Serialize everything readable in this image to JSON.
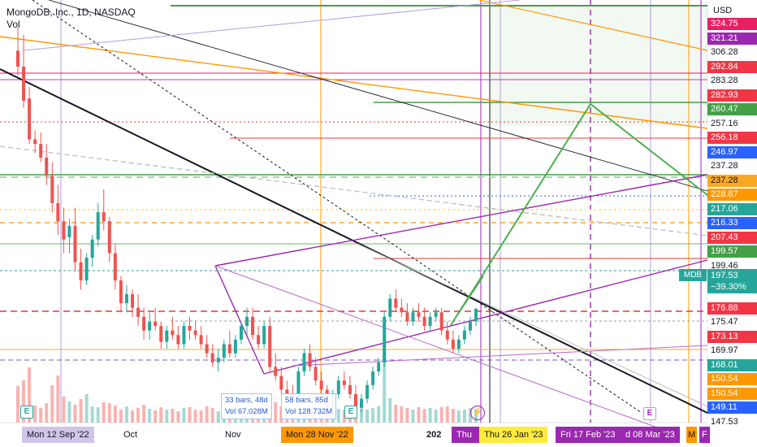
{
  "header": {
    "title": "MongoDB, Inc., 1D, NASDAQ",
    "vol_label": "Vol"
  },
  "currency": "USD",
  "symbol_tag": "MDB",
  "current": {
    "price": "197.53",
    "change": "−39.30%"
  },
  "price_labels": [
    {
      "text": "324.75",
      "bg": "#e91e63"
    },
    {
      "text": "321.21",
      "bg": "#9c27b0"
    },
    {
      "text": "306.28",
      "bg": "#ffffff",
      "fg": "#131722"
    },
    {
      "text": "292.84",
      "bg": "#f23645"
    },
    {
      "text": "283.28",
      "bg": "#ffffff",
      "fg": "#131722"
    },
    {
      "text": "282.93",
      "bg": "#f23645"
    },
    {
      "text": "260.47",
      "bg": "#43a047"
    },
    {
      "text": "257.16",
      "bg": "#ffffff",
      "fg": "#131722"
    },
    {
      "text": "256.18",
      "bg": "#f23645"
    },
    {
      "text": "246.97",
      "bg": "#2962ff"
    },
    {
      "text": "237.28",
      "bg": "#ffffff",
      "fg": "#131722"
    },
    {
      "text": "237.28",
      "bg": "#f9a825",
      "fg": "#131722"
    },
    {
      "text": "228.87",
      "bg": "#ff9800"
    },
    {
      "text": "217.06",
      "bg": "#26a69a"
    },
    {
      "text": "216.33",
      "bg": "#2962ff"
    },
    {
      "text": "207.43",
      "bg": "#f23645"
    },
    {
      "text": "199.57",
      "bg": "#43a047"
    },
    {
      "text": "199.46",
      "bg": "#ffffff",
      "fg": "#131722"
    },
    {
      "text": "176.88",
      "bg": "#f23645"
    },
    {
      "text": "175.47",
      "bg": "#ffffff",
      "fg": "#131722"
    },
    {
      "text": "173.13",
      "bg": "#f23645"
    },
    {
      "text": "169.97",
      "bg": "#ffffff",
      "fg": "#131722"
    },
    {
      "text": "168.01",
      "bg": "#26a69a"
    },
    {
      "text": "150.54",
      "bg": "#ff9800"
    },
    {
      "text": "150.54",
      "bg": "#ff9800"
    },
    {
      "text": "149.11",
      "bg": "#2962ff"
    },
    {
      "text": "147.53",
      "bg": "#ffffff",
      "fg": "#131722"
    }
  ],
  "x_axis": {
    "months": [
      "Oct",
      "Nov",
      "202"
    ],
    "date_tags": [
      {
        "text": "Mon 12 Sep '22",
        "bg": "#d1c4e9",
        "fg": "#131722"
      },
      {
        "text": "Mon 28 Nov '22",
        "bg": "#ff9800",
        "fg": "#131722"
      },
      {
        "text": "Thu",
        "bg": "#9c27b0",
        "fg": "#ffffff"
      },
      {
        "text": "Thu 26 Jan '23",
        "bg": "#ffeb3b",
        "fg": "#131722"
      },
      {
        "text": "Fri 17 Feb '23",
        "bg": "#9c27b0",
        "fg": "#ffffff"
      },
      {
        "text": "d 08 Mar '23",
        "bg": "#9c27b0",
        "fg": "#ffffff"
      },
      {
        "text": "M",
        "bg": "#ff9800",
        "fg": "#131722"
      },
      {
        "text": "F",
        "bg": "#9c27b0",
        "fg": "#ffffff"
      }
    ]
  },
  "measurements": [
    {
      "bars": "33 bars, 48d",
      "vol": "Vol 67.028M"
    },
    {
      "bars": "58 bars, 85d",
      "vol": "Vol 128.732M"
    }
  ],
  "events": [
    "E",
    "E",
    "E"
  ],
  "colors": {
    "up": "#26a69a",
    "down": "#ef5350",
    "vol_up": "#a5d9d3",
    "vol_down": "#f7b3b1"
  },
  "chart_data": {
    "type": "candlestick",
    "y_range": [
      147.5,
      329
    ],
    "candles": [
      [
        311,
        321,
        300,
        304
      ],
      [
        304,
        318,
        286,
        289
      ],
      [
        290,
        295,
        270,
        272
      ],
      [
        272,
        276,
        266,
        270
      ],
      [
        270,
        275,
        262,
        264
      ],
      [
        264,
        270,
        252,
        256
      ],
      [
        256,
        262,
        240,
        244
      ],
      [
        244,
        252,
        230,
        236
      ],
      [
        236,
        242,
        222,
        228
      ],
      [
        229,
        237,
        222,
        234
      ],
      [
        234,
        242,
        214,
        218
      ],
      [
        218,
        224,
        206,
        210
      ],
      [
        210,
        222,
        208,
        220
      ],
      [
        220,
        230,
        216,
        228
      ],
      [
        228,
        244,
        225,
        240
      ],
      [
        240,
        250,
        232,
        236
      ],
      [
        236,
        238,
        218,
        222
      ],
      [
        222,
        226,
        206,
        210
      ],
      [
        210,
        212,
        196,
        200
      ],
      [
        200,
        208,
        196,
        204
      ],
      [
        204,
        206,
        194,
        198
      ],
      [
        198,
        204,
        190,
        194
      ],
      [
        194,
        198,
        184,
        188
      ],
      [
        188,
        196,
        184,
        192
      ],
      [
        192,
        198,
        188,
        190
      ],
      [
        190,
        192,
        180,
        183
      ],
      [
        183,
        190,
        180,
        188
      ],
      [
        188,
        194,
        184,
        186
      ],
      [
        186,
        190,
        180,
        182
      ],
      [
        182,
        192,
        180,
        190
      ],
      [
        190,
        194,
        184,
        188
      ],
      [
        188,
        192,
        184,
        186
      ],
      [
        186,
        190,
        180,
        182
      ],
      [
        182,
        186,
        176,
        178
      ],
      [
        178,
        182,
        172,
        174
      ],
      [
        174,
        180,
        170,
        176
      ],
      [
        176,
        184,
        174,
        182
      ],
      [
        182,
        188,
        176,
        178
      ],
      [
        178,
        186,
        176,
        184
      ],
      [
        184,
        192,
        182,
        190
      ],
      [
        190,
        198,
        186,
        194
      ],
      [
        194,
        198,
        184,
        186
      ],
      [
        186,
        190,
        180,
        182
      ],
      [
        182,
        192,
        180,
        190
      ],
      [
        190,
        194,
        170,
        172
      ],
      [
        172,
        178,
        166,
        168
      ],
      [
        168,
        172,
        160,
        162
      ],
      [
        162,
        166,
        158,
        160
      ],
      [
        160,
        164,
        156,
        158
      ],
      [
        158,
        172,
        156,
        170
      ],
      [
        170,
        180,
        168,
        178
      ],
      [
        178,
        182,
        170,
        172
      ],
      [
        172,
        176,
        164,
        166
      ],
      [
        166,
        170,
        160,
        162
      ],
      [
        162,
        164,
        152,
        154
      ],
      [
        154,
        162,
        152,
        160
      ],
      [
        160,
        168,
        158,
        166
      ],
      [
        166,
        170,
        162,
        164
      ],
      [
        164,
        168,
        158,
        160
      ],
      [
        160,
        164,
        152,
        154
      ],
      [
        154,
        160,
        152,
        158
      ],
      [
        158,
        166,
        156,
        164
      ],
      [
        164,
        172,
        162,
        170
      ],
      [
        170,
        176,
        168,
        174
      ],
      [
        174,
        196,
        172,
        194
      ],
      [
        194,
        204,
        192,
        202
      ],
      [
        202,
        206,
        196,
        198
      ],
      [
        198,
        202,
        194,
        196
      ],
      [
        196,
        200,
        190,
        192
      ],
      [
        192,
        198,
        190,
        196
      ],
      [
        196,
        200,
        192,
        194
      ],
      [
        194,
        198,
        188,
        190
      ],
      [
        190,
        196,
        188,
        194
      ],
      [
        194,
        198,
        192,
        196
      ],
      [
        196,
        198,
        186,
        188
      ],
      [
        188,
        192,
        182,
        184
      ],
      [
        184,
        188,
        178,
        180
      ],
      [
        180,
        186,
        178,
        184
      ],
      [
        184,
        190,
        182,
        188
      ],
      [
        188,
        194,
        186,
        192
      ],
      [
        192,
        198,
        190,
        197.5
      ]
    ],
    "volumes": [
      4.5,
      5.2,
      6.8,
      2.1,
      1.8,
      2.4,
      4.6,
      5.8,
      3.2,
      2.6,
      2.2,
      2.9,
      3.5,
      2.0,
      1.9,
      2.5,
      2.4,
      2.1,
      1.6,
      2.0,
      1.5,
      1.8,
      2.2,
      1.7,
      1.5,
      1.9,
      1.6,
      1.7,
      1.4,
      1.8,
      1.9,
      1.6,
      1.5,
      2.0,
      1.8,
      1.4,
      1.6,
      1.7,
      1.5,
      1.9,
      2.1,
      1.8,
      1.6,
      1.5,
      2.7,
      2.5,
      2.0,
      1.8,
      1.6,
      2.2,
      2.0,
      1.6,
      1.7,
      1.5,
      2.3,
      1.9,
      1.7,
      1.6,
      1.8,
      2.1,
      1.7,
      1.6,
      1.8,
      2.0,
      8.5,
      3.0,
      2.2,
      2.0,
      1.8,
      1.6,
      1.9,
      1.7,
      1.8,
      1.6,
      1.9,
      2.0,
      1.7,
      1.5,
      1.6,
      1.8,
      1.7
    ]
  }
}
